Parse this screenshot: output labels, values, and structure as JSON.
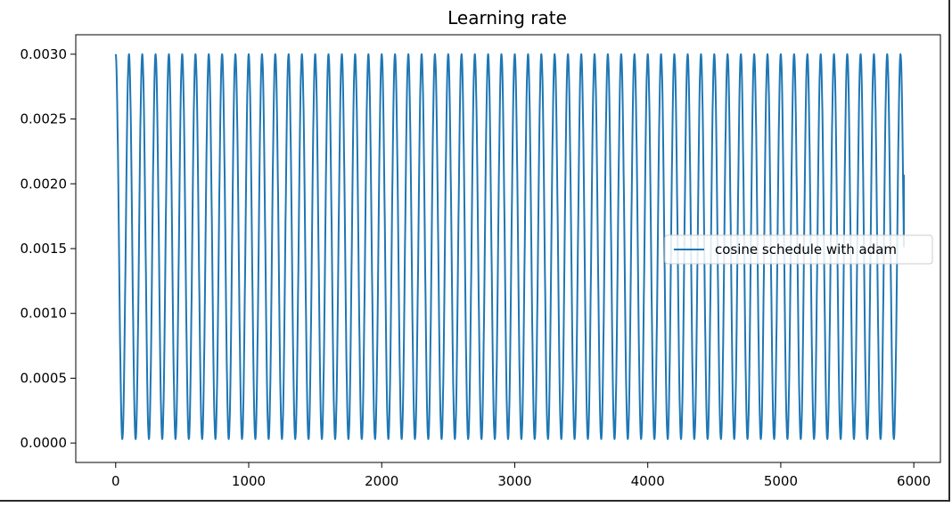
{
  "chart_data": {
    "type": "line",
    "title": "Learning rate",
    "xlabel": "",
    "ylabel": "",
    "xlim": [
      -300,
      6200
    ],
    "ylim": [
      -0.00015,
      0.00315
    ],
    "xticks": [
      0,
      1000,
      2000,
      3000,
      4000,
      5000,
      6000
    ],
    "xtick_labels": [
      "0",
      "1000",
      "2000",
      "3000",
      "4000",
      "5000",
      "6000"
    ],
    "yticks": [
      0.0,
      0.0005,
      0.001,
      0.0015,
      0.002,
      0.0025,
      0.003
    ],
    "ytick_labels": [
      "0.0000",
      "0.0005",
      "0.0010",
      "0.0015",
      "0.0020",
      "0.0025",
      "0.0030"
    ],
    "grid": false,
    "legend_position": "center-right",
    "series": [
      {
        "name": "cosine schedule with adam",
        "color": "#1f77b4",
        "schedule": "cosine annealing with warm restarts",
        "max_lr": 0.003,
        "min_lr": 3e-05,
        "cycle_length_steps": 100,
        "num_cycles": 60,
        "x_start": 0,
        "x_end": 5925,
        "final_value": 0.00207
      }
    ]
  }
}
